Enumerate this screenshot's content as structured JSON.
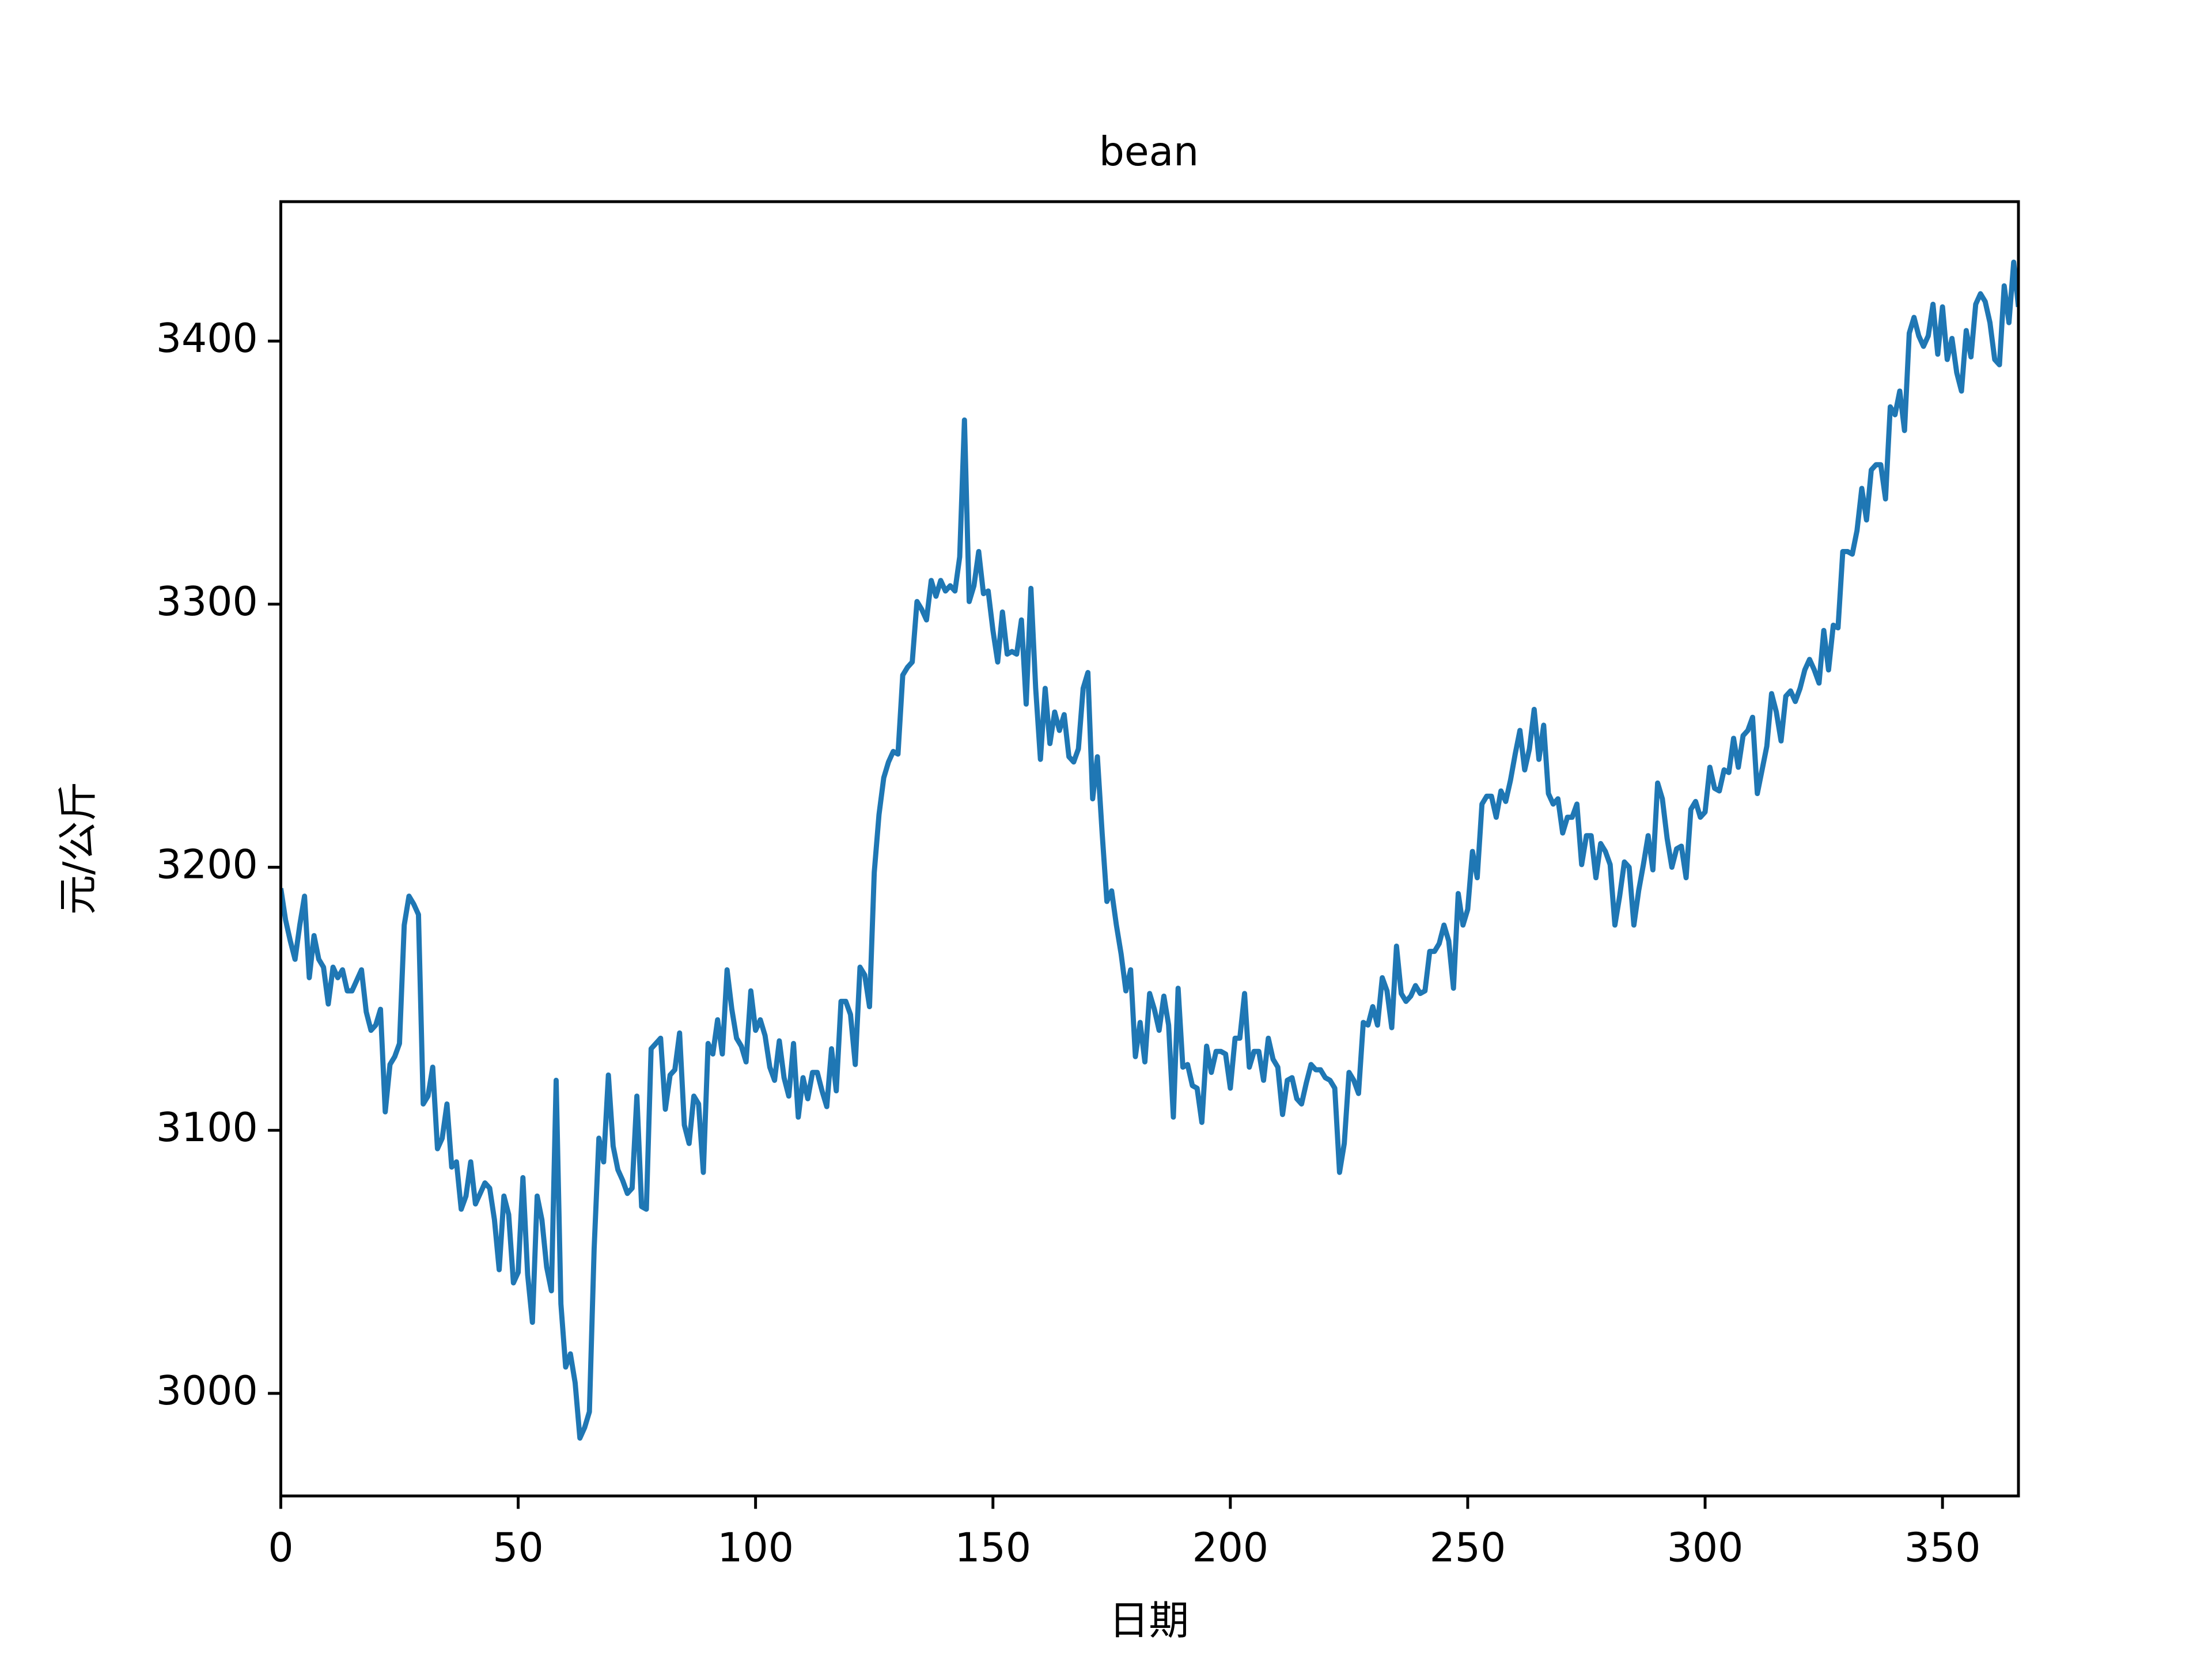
{
  "chart_data": {
    "type": "line",
    "title": "bean",
    "xlabel": "日期",
    "ylabel": "元/公斤",
    "color": "#1f77b4",
    "xlim": [
      0,
      366
    ],
    "ylim": [
      2961,
      3453
    ],
    "xticks": [
      0,
      50,
      100,
      150,
      200,
      250,
      300,
      350
    ],
    "yticks": [
      3000,
      3100,
      3200,
      3300,
      3400
    ],
    "x": [
      0,
      1,
      2,
      3,
      4,
      5,
      6,
      7,
      8,
      9,
      10,
      11,
      12,
      13,
      14,
      15,
      16,
      17,
      18,
      19,
      20,
      21,
      22,
      23,
      24,
      25,
      26,
      27,
      28,
      29,
      30,
      31,
      32,
      33,
      34,
      35,
      36,
      37,
      38,
      39,
      40,
      41,
      42,
      43,
      44,
      45,
      46,
      47,
      48,
      49,
      50,
      51,
      52,
      53,
      54,
      55,
      56,
      57,
      58,
      59,
      60,
      61,
      62,
      63,
      64,
      65,
      66,
      67,
      68,
      69,
      70,
      71,
      72,
      73,
      74,
      75,
      76,
      77,
      78,
      79,
      80,
      81,
      82,
      83,
      84,
      85,
      86,
      87,
      88,
      89,
      90,
      91,
      92,
      93,
      94,
      95,
      96,
      97,
      98,
      99,
      100,
      101,
      102,
      103,
      104,
      105,
      106,
      107,
      108,
      109,
      110,
      111,
      112,
      113,
      114,
      115,
      116,
      117,
      118,
      119,
      120,
      121,
      122,
      123,
      124,
      125,
      126,
      127,
      128,
      129,
      130,
      131,
      132,
      133,
      134,
      135,
      136,
      137,
      138,
      139,
      140,
      141,
      142,
      143,
      144,
      145,
      146,
      147,
      148,
      149,
      150,
      151,
      152,
      153,
      154,
      155,
      156,
      157,
      158,
      159,
      160,
      161,
      162,
      163,
      164,
      165,
      166,
      167,
      168,
      169,
      170,
      171,
      172,
      173,
      174,
      175,
      176,
      177,
      178,
      179,
      180,
      181,
      182,
      183,
      184,
      185,
      186,
      187,
      188,
      189,
      190,
      191,
      192,
      193,
      194,
      195,
      196,
      197,
      198,
      199,
      200,
      201,
      202,
      203,
      204,
      205,
      206,
      207,
      208,
      209,
      210,
      211,
      212,
      213,
      214,
      215,
      216,
      217,
      218,
      219,
      220,
      221,
      222,
      223,
      224,
      225,
      226,
      227,
      228,
      229,
      230,
      231,
      232,
      233,
      234,
      235,
      236,
      237,
      238,
      239,
      240,
      241,
      242,
      243,
      244,
      245,
      246,
      247,
      248,
      249,
      250,
      251,
      252,
      253,
      254,
      255,
      256,
      257,
      258,
      259,
      260,
      261,
      262,
      263,
      264,
      265,
      266,
      267,
      268,
      269,
      270,
      271,
      272,
      273,
      274,
      275,
      276,
      277,
      278,
      279,
      280,
      281,
      282,
      283,
      284,
      285,
      286,
      287,
      288,
      289,
      290,
      291,
      292,
      293,
      294,
      295,
      296,
      297,
      298,
      299,
      300,
      301,
      302,
      303,
      304,
      305,
      306,
      307,
      308,
      309,
      310,
      311,
      312,
      313,
      314,
      315,
      316,
      317,
      318,
      319,
      320,
      321,
      322,
      323,
      324,
      325,
      326,
      327,
      328,
      329,
      330,
      331,
      332,
      333,
      334,
      335,
      336,
      337,
      338,
      339,
      340,
      341,
      342,
      343,
      344,
      345,
      346,
      347,
      348,
      349,
      350,
      351,
      352,
      353,
      354,
      355,
      356,
      357,
      358,
      359,
      360,
      361,
      362,
      363,
      364,
      365,
      366
    ],
    "values": [
      3192,
      3180,
      3172,
      3165,
      3178,
      3189,
      3158,
      3174,
      3165,
      3162,
      3148,
      3162,
      3158,
      3161,
      3153,
      3153,
      3157,
      3161,
      3145,
      3138,
      3140,
      3146,
      3107,
      3125,
      3128,
      3133,
      3178,
      3189,
      3186,
      3182,
      3110,
      3113,
      3124,
      3093,
      3097,
      3110,
      3086,
      3088,
      3070,
      3075,
      3088,
      3072,
      3076,
      3080,
      3078,
      3066,
      3047,
      3075,
      3068,
      3042,
      3046,
      3082,
      3045,
      3027,
      3075,
      3066,
      3048,
      3039,
      3119,
      3034,
      3010,
      3015,
      3004,
      2983,
      2987,
      2993,
      3055,
      3097,
      3088,
      3121,
      3094,
      3085,
      3081,
      3076,
      3078,
      3113,
      3071,
      3070,
      3131,
      3133,
      3135,
      3108,
      3121,
      3123,
      3137,
      3102,
      3095,
      3113,
      3110,
      3084,
      3133,
      3129,
      3142,
      3129,
      3161,
      3146,
      3135,
      3132,
      3126,
      3153,
      3138,
      3142,
      3136,
      3124,
      3119,
      3134,
      3120,
      3113,
      3133,
      3105,
      3120,
      3112,
      3122,
      3122,
      3115,
      3109,
      3131,
      3115,
      3149,
      3149,
      3144,
      3125,
      3162,
      3159,
      3147,
      3198,
      3220,
      3234,
      3240,
      3244,
      3243,
      3273,
      3276,
      3278,
      3301,
      3298,
      3294,
      3309,
      3303,
      3309,
      3305,
      3307,
      3305,
      3318,
      3370,
      3301,
      3307,
      3320,
      3304,
      3305,
      3290,
      3278,
      3297,
      3281,
      3282,
      3281,
      3294,
      3262,
      3306,
      3268,
      3241,
      3268,
      3247,
      3259,
      3252,
      3258,
      3242,
      3240,
      3245,
      3268,
      3274,
      3226,
      3242,
      3213,
      3187,
      3191,
      3178,
      3167,
      3153,
      3161,
      3128,
      3141,
      3126,
      3152,
      3146,
      3138,
      3151,
      3140,
      3105,
      3154,
      3124,
      3125,
      3117,
      3116,
      3103,
      3132,
      3122,
      3130,
      3130,
      3129,
      3116,
      3135,
      3135,
      3152,
      3124,
      3130,
      3130,
      3119,
      3135,
      3127,
      3124,
      3106,
      3119,
      3120,
      3112,
      3110,
      3118,
      3125,
      3123,
      3123,
      3120,
      3119,
      3116,
      3084,
      3095,
      3122,
      3119,
      3114,
      3141,
      3140,
      3147,
      3140,
      3158,
      3153,
      3139,
      3170,
      3152,
      3149,
      3151,
      3155,
      3152,
      3153,
      3168,
      3168,
      3171,
      3178,
      3172,
      3154,
      3190,
      3178,
      3184,
      3206,
      3196,
      3224,
      3227,
      3227,
      3219,
      3229,
      3225,
      3233,
      3243,
      3252,
      3237,
      3245,
      3260,
      3241,
      3254,
      3228,
      3224,
      3226,
      3213,
      3219,
      3219,
      3224,
      3201,
      3212,
      3212,
      3196,
      3209,
      3206,
      3201,
      3178,
      3189,
      3202,
      3200,
      3178,
      3191,
      3201,
      3212,
      3199,
      3232,
      3226,
      3211,
      3200,
      3207,
      3208,
      3196,
      3222,
      3225,
      3219,
      3221,
      3238,
      3230,
      3229,
      3237,
      3236,
      3249,
      3238,
      3250,
      3252,
      3257,
      3228,
      3237,
      3246,
      3266,
      3259,
      3248,
      3265,
      3267,
      3263,
      3268,
      3275,
      3279,
      3275,
      3270,
      3290,
      3275,
      3292,
      3291,
      3320,
      3320,
      3319,
      3328,
      3344,
      3332,
      3351,
      3353,
      3353,
      3340,
      3375,
      3372,
      3381,
      3366,
      3403,
      3409,
      3402,
      3398,
      3402,
      3414,
      3395,
      3413,
      3393,
      3401,
      3388,
      3381,
      3404,
      3394,
      3414,
      3418,
      3415,
      3407,
      3393,
      3391,
      3421,
      3407,
      3430,
      3413
    ]
  }
}
